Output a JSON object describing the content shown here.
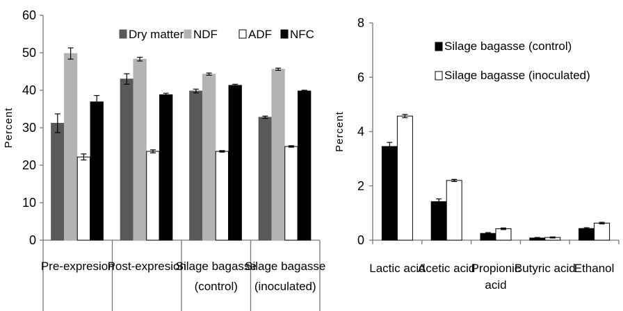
{
  "chart_data": [
    {
      "type": "bar",
      "title": "",
      "xlabel": "",
      "ylabel": "Percent",
      "ylim": [
        0,
        60
      ],
      "yticks": [
        "0",
        "10",
        "20",
        "30",
        "40",
        "50",
        "60"
      ],
      "grid": false,
      "legend_position": "top",
      "categories": [
        [
          "Pre-expresion"
        ],
        [
          "Post-expresion"
        ],
        [
          "Silage bagasse",
          "(control)"
        ],
        [
          "Silage bagasse",
          "(inoculated)"
        ]
      ],
      "series": [
        {
          "name": "Dry matter",
          "color": "#595959",
          "values": [
            31.2,
            43.0,
            39.8,
            32.8
          ],
          "errors": [
            2.5,
            1.4,
            0.5,
            0.3
          ]
        },
        {
          "name": "NDF",
          "color": "#b3b3b3",
          "values": [
            49.8,
            48.3,
            44.3,
            45.6
          ],
          "errors": [
            1.5,
            0.5,
            0.3,
            0.3
          ]
        },
        {
          "name": "ADF",
          "color": "#ffffff",
          "values": [
            22.2,
            23.7,
            23.7,
            25.0
          ],
          "errors": [
            0.8,
            0.4,
            0.2,
            0.2
          ]
        },
        {
          "name": "NFC",
          "color": "#000000",
          "values": [
            36.9,
            38.8,
            41.3,
            39.8
          ],
          "errors": [
            1.7,
            0.4,
            0.3,
            0.2
          ]
        }
      ]
    },
    {
      "type": "bar",
      "title": "",
      "xlabel": "",
      "ylabel": "Percent",
      "ylim": [
        0,
        8
      ],
      "yticks": [
        "0",
        "2",
        "4",
        "6",
        "8"
      ],
      "grid": false,
      "legend_position": "top-left, stacked",
      "categories": [
        [
          "Lactic acid"
        ],
        [
          "Acetic acid"
        ],
        [
          "Propionic",
          "acid"
        ],
        [
          "Butyric acid"
        ],
        [
          "Ethanol"
        ]
      ],
      "series": [
        {
          "name": "Silage bagasse (control)",
          "color": "#000000",
          "values": [
            3.45,
            1.42,
            0.25,
            0.08,
            0.43
          ],
          "errors": [
            0.15,
            0.1,
            0.03,
            0.02,
            0.03
          ]
        },
        {
          "name": "Silage bagasse (inoculated)",
          "color": "#ffffff",
          "values": [
            4.57,
            2.2,
            0.42,
            0.1,
            0.63
          ],
          "errors": [
            0.06,
            0.04,
            0.03,
            0.02,
            0.03
          ]
        }
      ]
    }
  ]
}
